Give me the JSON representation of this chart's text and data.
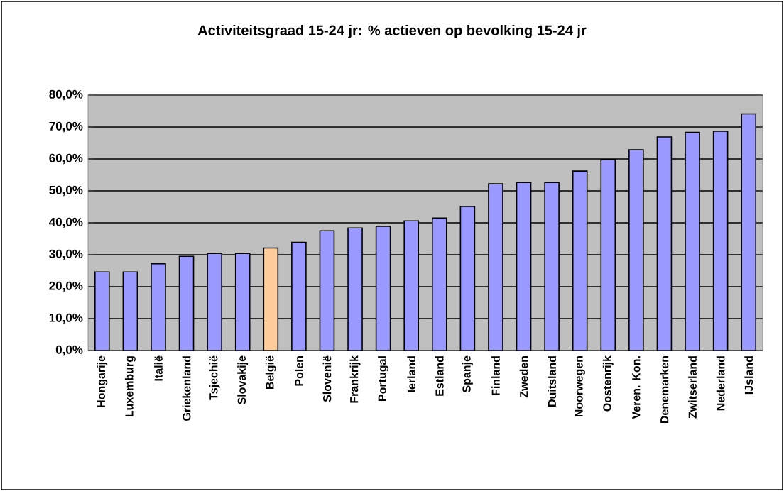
{
  "chart_data": {
    "type": "bar",
    "title": "Activiteitsgraad 15-24 jr: % actieven op bevolking 15-24 jr",
    "categories": [
      "Hongarije",
      "Luxemburg",
      "Italië",
      "Griekenland",
      "Tsjechië",
      "Slovakije",
      "België",
      "Polen",
      "Slovenië",
      "Frankrijk",
      "Portugal",
      "Ierland",
      "Estland",
      "Spanje",
      "Finland",
      "Zweden",
      "Duitsland",
      "Noorwegen",
      "Oostenrijk",
      "Veren. Kon.",
      "Denemarken",
      "Zwitserland",
      "Nederland",
      "IJsland"
    ],
    "values": [
      24.6,
      24.6,
      27.2,
      29.5,
      30.4,
      30.4,
      32.1,
      33.9,
      37.5,
      38.4,
      38.9,
      40.6,
      41.5,
      45.1,
      52.2,
      52.6,
      52.6,
      56.2,
      59.8,
      62.9,
      66.9,
      68.3,
      68.7,
      74.1
    ],
    "colors": [
      "#9999ff",
      "#9999ff",
      "#9999ff",
      "#9999ff",
      "#9999ff",
      "#9999ff",
      "#ffcc99",
      "#9999ff",
      "#9999ff",
      "#9999ff",
      "#9999ff",
      "#9999ff",
      "#9999ff",
      "#9999ff",
      "#9999ff",
      "#9999ff",
      "#9999ff",
      "#9999ff",
      "#9999ff",
      "#9999ff",
      "#9999ff",
      "#9999ff",
      "#9999ff",
      "#9999ff"
    ],
    "ylim": [
      0,
      80
    ],
    "yticks": [
      {
        "value": 0,
        "label": "0,0%"
      },
      {
        "value": 10,
        "label": "10,0%"
      },
      {
        "value": 20,
        "label": "20,0%"
      },
      {
        "value": 30,
        "label": "30,0%"
      },
      {
        "value": 40,
        "label": "40,0%"
      },
      {
        "value": 50,
        "label": "50,0%"
      },
      {
        "value": 60,
        "label": "60,0%"
      },
      {
        "value": 70,
        "label": "70,0%"
      },
      {
        "value": 80,
        "label": "80,0%"
      }
    ],
    "grid": "y"
  }
}
